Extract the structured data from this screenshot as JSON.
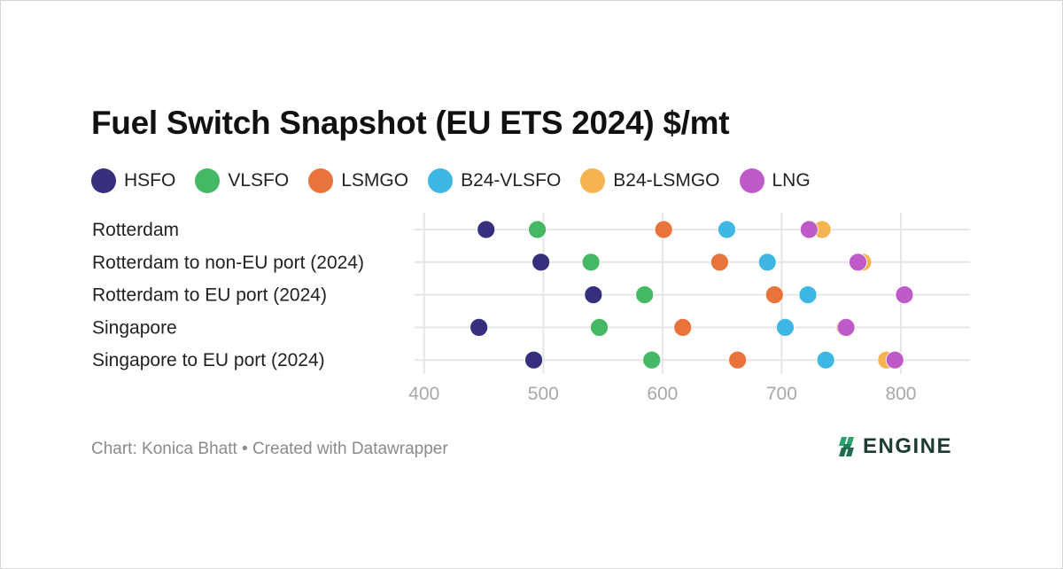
{
  "chart_data": {
    "type": "scatter",
    "title": "Fuel Switch Snapshot (EU ETS 2024) $/mt",
    "categories": [
      "Rotterdam",
      "Rotterdam to non-EU port (2024)",
      "Rotterdam to EU port (2024)",
      "Singapore",
      "Singapore to EU port (2024)"
    ],
    "series": [
      {
        "name": "HSFO",
        "color": "#352f7e",
        "values": [
          452,
          498,
          542,
          446,
          492
        ]
      },
      {
        "name": "VLSFO",
        "color": "#45b864",
        "values": [
          495,
          540,
          585,
          547,
          591
        ]
      },
      {
        "name": "LSMGO",
        "color": "#e8743b",
        "values": [
          601,
          648,
          694,
          617,
          663
        ]
      },
      {
        "name": "B24-VLSFO",
        "color": "#3fb7e4",
        "values": [
          654,
          688,
          722,
          703,
          737
        ]
      },
      {
        "name": "B24-LSMGO",
        "color": "#f5b451",
        "values": [
          734,
          768,
          803,
          753,
          788
        ]
      },
      {
        "name": "LNG",
        "color": "#bf5bc8",
        "values": [
          723,
          764,
          803,
          754,
          795
        ]
      }
    ],
    "xticks": [
      400,
      500,
      600,
      700,
      800
    ],
    "xlim": [
      392,
      858
    ],
    "grid": true,
    "legend_position": "top-left"
  },
  "footer": {
    "credit": "Chart: Konica Bhatt • Created with Datawrapper"
  },
  "logo": {
    "text": "ENGINE"
  }
}
